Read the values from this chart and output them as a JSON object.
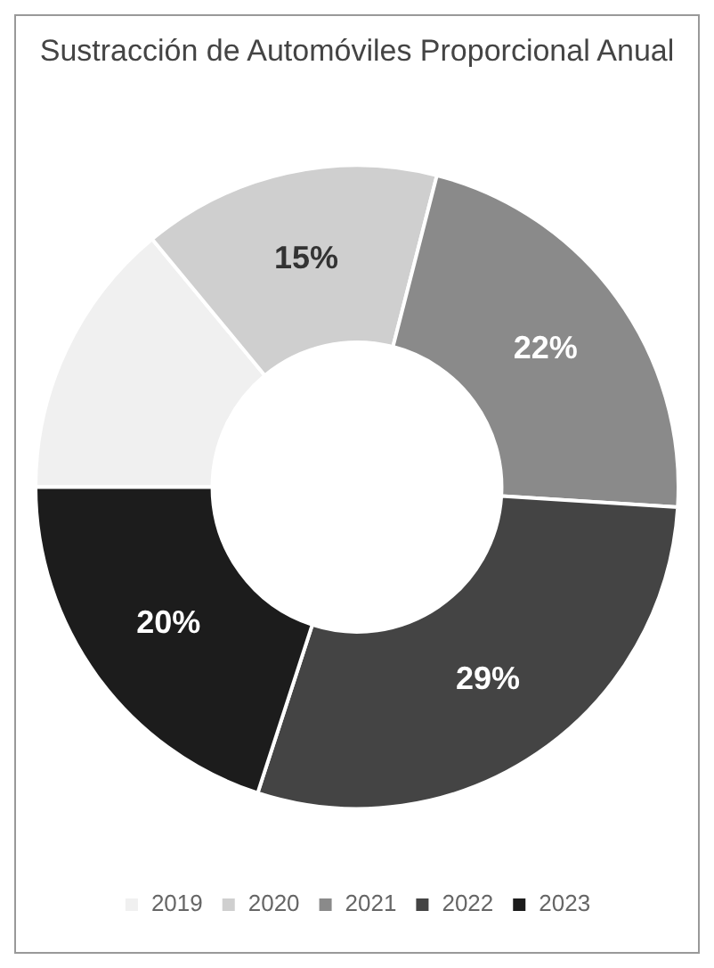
{
  "chart_data": {
    "type": "donut",
    "title": "Sustracción de Automóviles Proporcional Anual",
    "categories": [
      "2019",
      "2020",
      "2021",
      "2022",
      "2023"
    ],
    "values": [
      14,
      15,
      22,
      29,
      20
    ],
    "colors": [
      "#f0f0f0",
      "#cfcfcf",
      "#8a8a8a",
      "#444444",
      "#1c1c1c"
    ],
    "value_labels": [
      null,
      "15%",
      "22%",
      "29%",
      "20%"
    ],
    "legend": "bottom"
  }
}
